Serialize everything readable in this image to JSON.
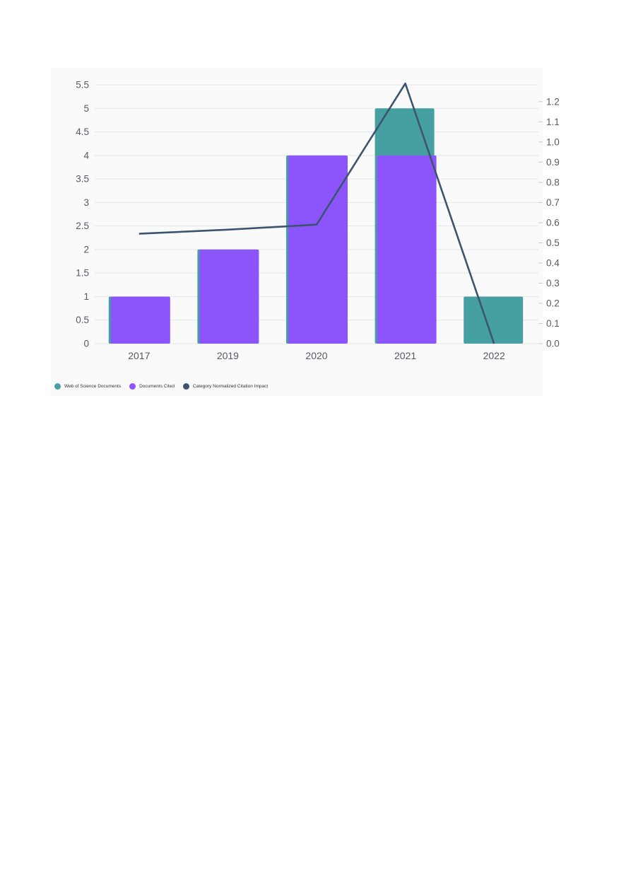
{
  "chart_data": {
    "type": "bar",
    "title": "",
    "xlabel": "",
    "ylabel": "",
    "categories": [
      "2017",
      "2019",
      "2020",
      "2021",
      "2022"
    ],
    "series": [
      {
        "name": "Web of Science Documents",
        "type": "bar",
        "axis": "left",
        "color": "#46a0a2",
        "values": [
          1,
          2,
          4,
          5,
          1
        ]
      },
      {
        "name": "Documents Cited",
        "type": "bar",
        "axis": "left",
        "color": "#8c55fb",
        "values": [
          1,
          2,
          4,
          4,
          0
        ]
      },
      {
        "name": "Category Normalized Citation Impact",
        "type": "line",
        "axis": "right",
        "color": "#3d546e",
        "values": [
          0.545,
          0.565,
          0.59,
          1.29,
          0.0
        ]
      }
    ],
    "y_left": {
      "range": [
        0,
        5.5
      ],
      "ticks": [
        "0",
        "0.5",
        "1",
        "1.5",
        "2",
        "2.5",
        "3",
        "3.5",
        "4",
        "4.5",
        "5",
        "5.5"
      ]
    },
    "y_right": {
      "range": [
        0,
        1.2833
      ],
      "ticks": [
        "0.0",
        "0.1",
        "0.2",
        "0.3",
        "0.4",
        "0.5",
        "0.6",
        "0.7",
        "0.8",
        "0.9",
        "1.0",
        "1.1",
        "1.2"
      ]
    },
    "grid": true,
    "legend_position": "bottom-left"
  }
}
